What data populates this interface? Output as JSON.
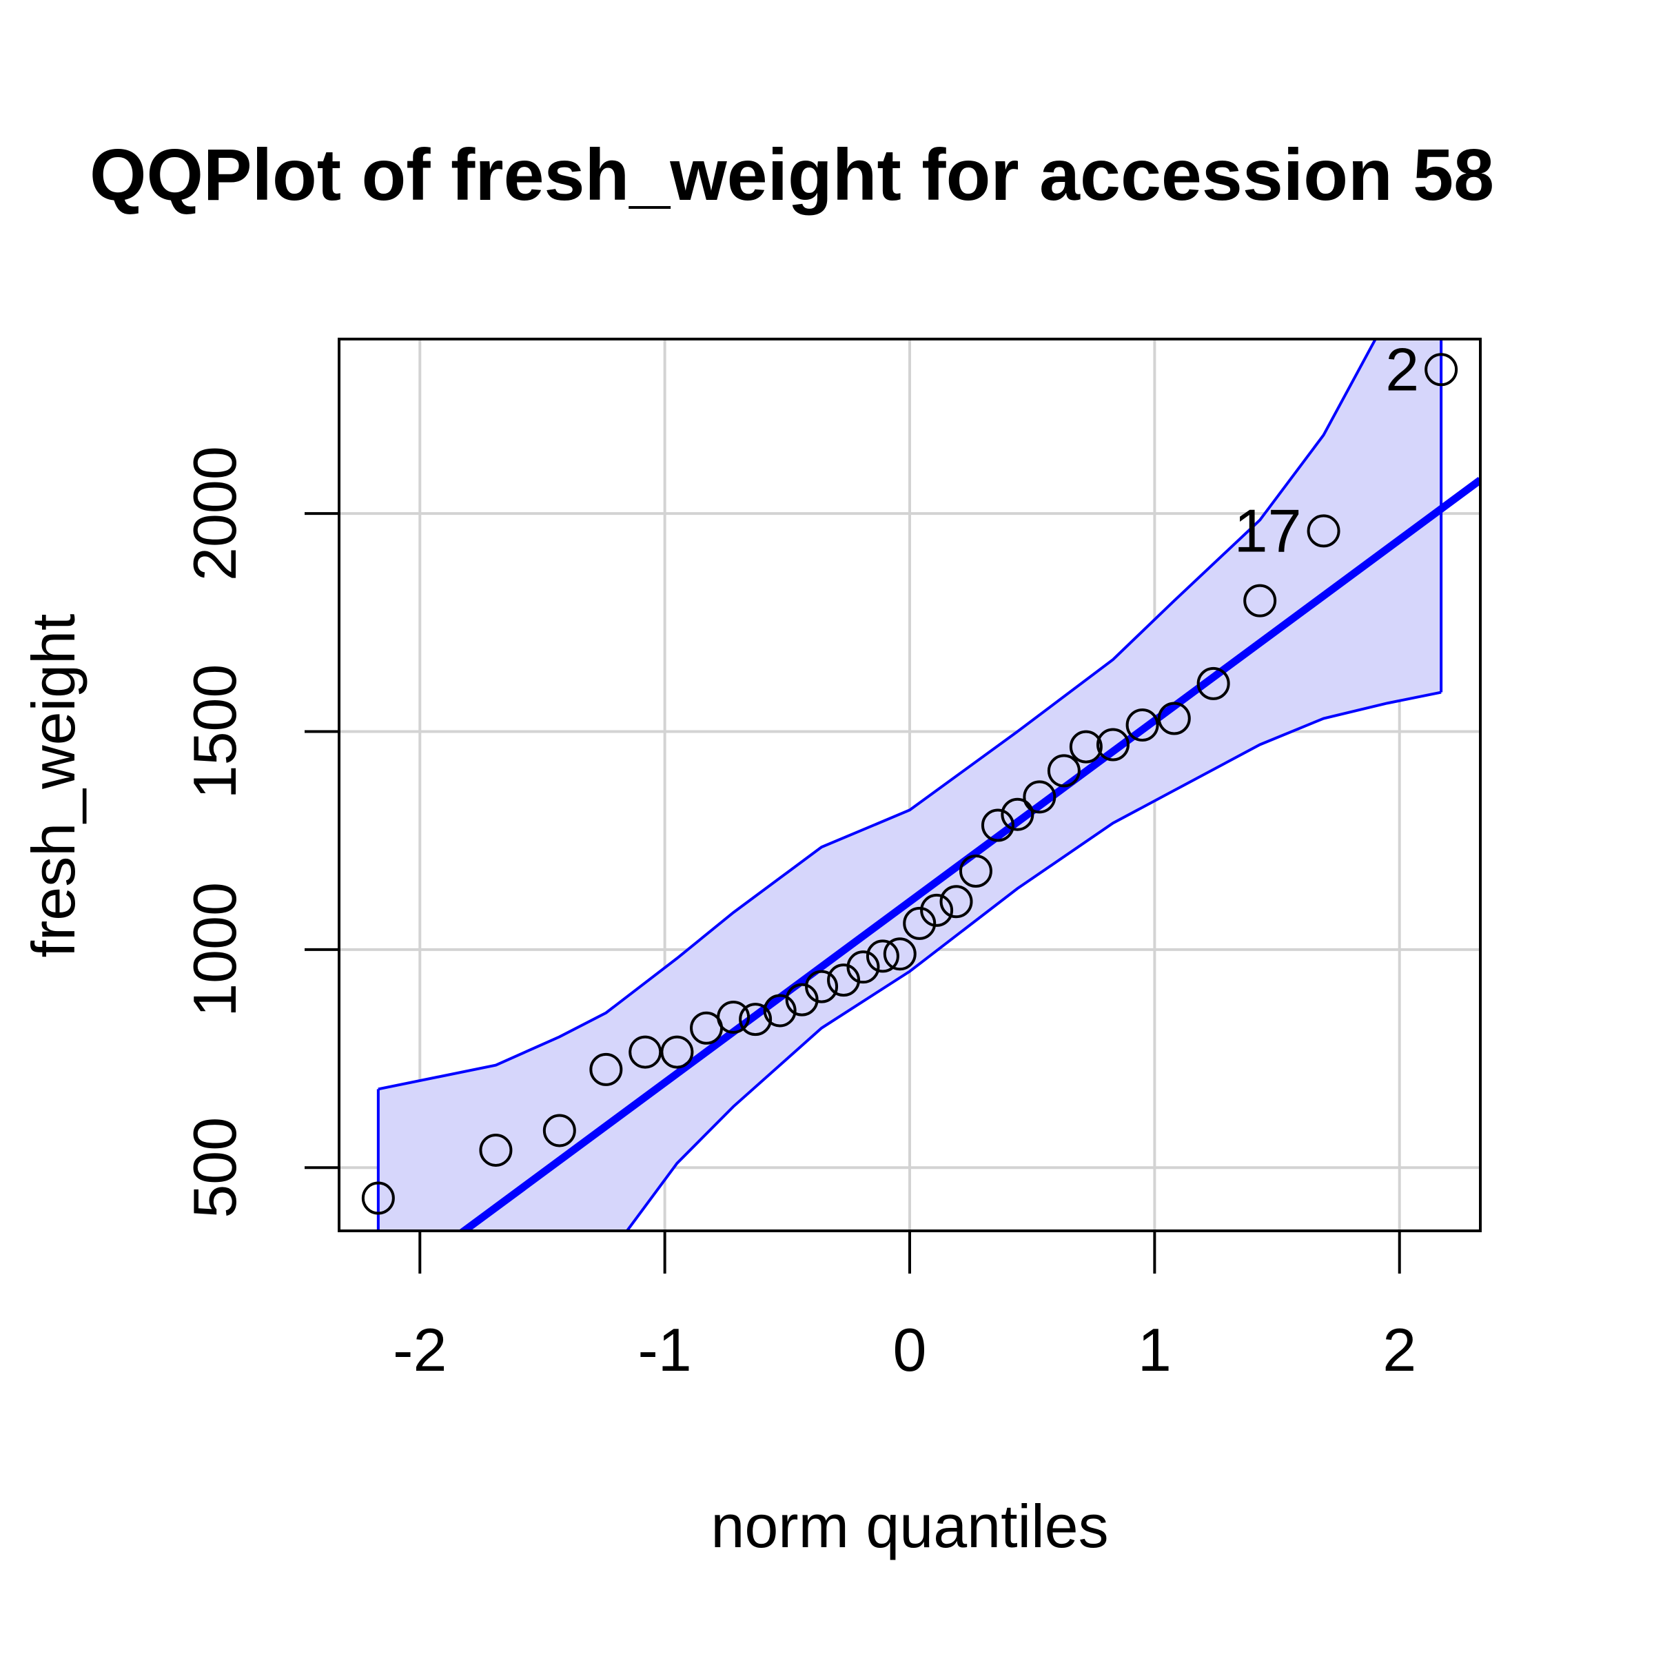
{
  "chart_data": {
    "type": "scatter",
    "title": "QQPlot of fresh_weight for accession 58",
    "xlabel": "norm quantiles",
    "ylabel": "fresh_weight",
    "xlim": [
      -2.33,
      2.33
    ],
    "ylim": [
      355,
      2400
    ],
    "xticks": [
      "-2",
      "-1",
      "0",
      "1",
      "2"
    ],
    "yticks": [
      "500",
      "1000",
      "1500",
      "2000"
    ],
    "grid": true,
    "colors": {
      "points": "#000000",
      "line": "#0000ff",
      "band_fill": "#d6d6fb",
      "band_edge": "#0000ff",
      "grid": "#d3d3d3"
    },
    "points": [
      [
        -2.17,
        430
      ],
      [
        -1.69,
        540
      ],
      [
        -1.43,
        585
      ],
      [
        -1.24,
        725
      ],
      [
        -1.08,
        765
      ],
      [
        -0.95,
        765
      ],
      [
        -0.83,
        820
      ],
      [
        -0.72,
        845
      ],
      [
        -0.63,
        840
      ],
      [
        -0.53,
        860
      ],
      [
        -0.44,
        885
      ],
      [
        -0.36,
        915
      ],
      [
        -0.27,
        930
      ],
      [
        -0.19,
        960
      ],
      [
        -0.11,
        985
      ],
      [
        -0.04,
        990
      ],
      [
        0.04,
        1060
      ],
      [
        0.11,
        1090
      ],
      [
        0.19,
        1110
      ],
      [
        0.27,
        1180
      ],
      [
        0.36,
        1285
      ],
      [
        0.44,
        1310
      ],
      [
        0.53,
        1350
      ],
      [
        0.63,
        1410
      ],
      [
        0.72,
        1465
      ],
      [
        0.83,
        1470
      ],
      [
        0.95,
        1515
      ],
      [
        1.08,
        1530
      ],
      [
        1.24,
        1610
      ],
      [
        1.43,
        1800
      ],
      [
        1.69,
        1960
      ],
      [
        2.17,
        2330
      ]
    ],
    "labeled_points": [
      {
        "label": "17",
        "x": 1.69,
        "y": 1960
      },
      {
        "label": "2",
        "x": 2.17,
        "y": 2330
      }
    ],
    "reference_line": {
      "slope": 415,
      "intercept": 1110
    },
    "confidence_band": {
      "x": [
        -2.17,
        -1.69,
        -1.43,
        -1.24,
        -0.95,
        -0.72,
        -0.36,
        0.0,
        0.44,
        0.83,
        1.08,
        1.43,
        1.69,
        1.95,
        2.17
      ],
      "upper": [
        680,
        735,
        800,
        855,
        980,
        1085,
        1235,
        1320,
        1500,
        1665,
        1800,
        1985,
        2180,
        2450,
        2700
      ],
      "lower": [
        50,
        120,
        195,
        290,
        510,
        640,
        820,
        950,
        1140,
        1290,
        1365,
        1470,
        1530,
        1565,
        1590
      ]
    }
  }
}
